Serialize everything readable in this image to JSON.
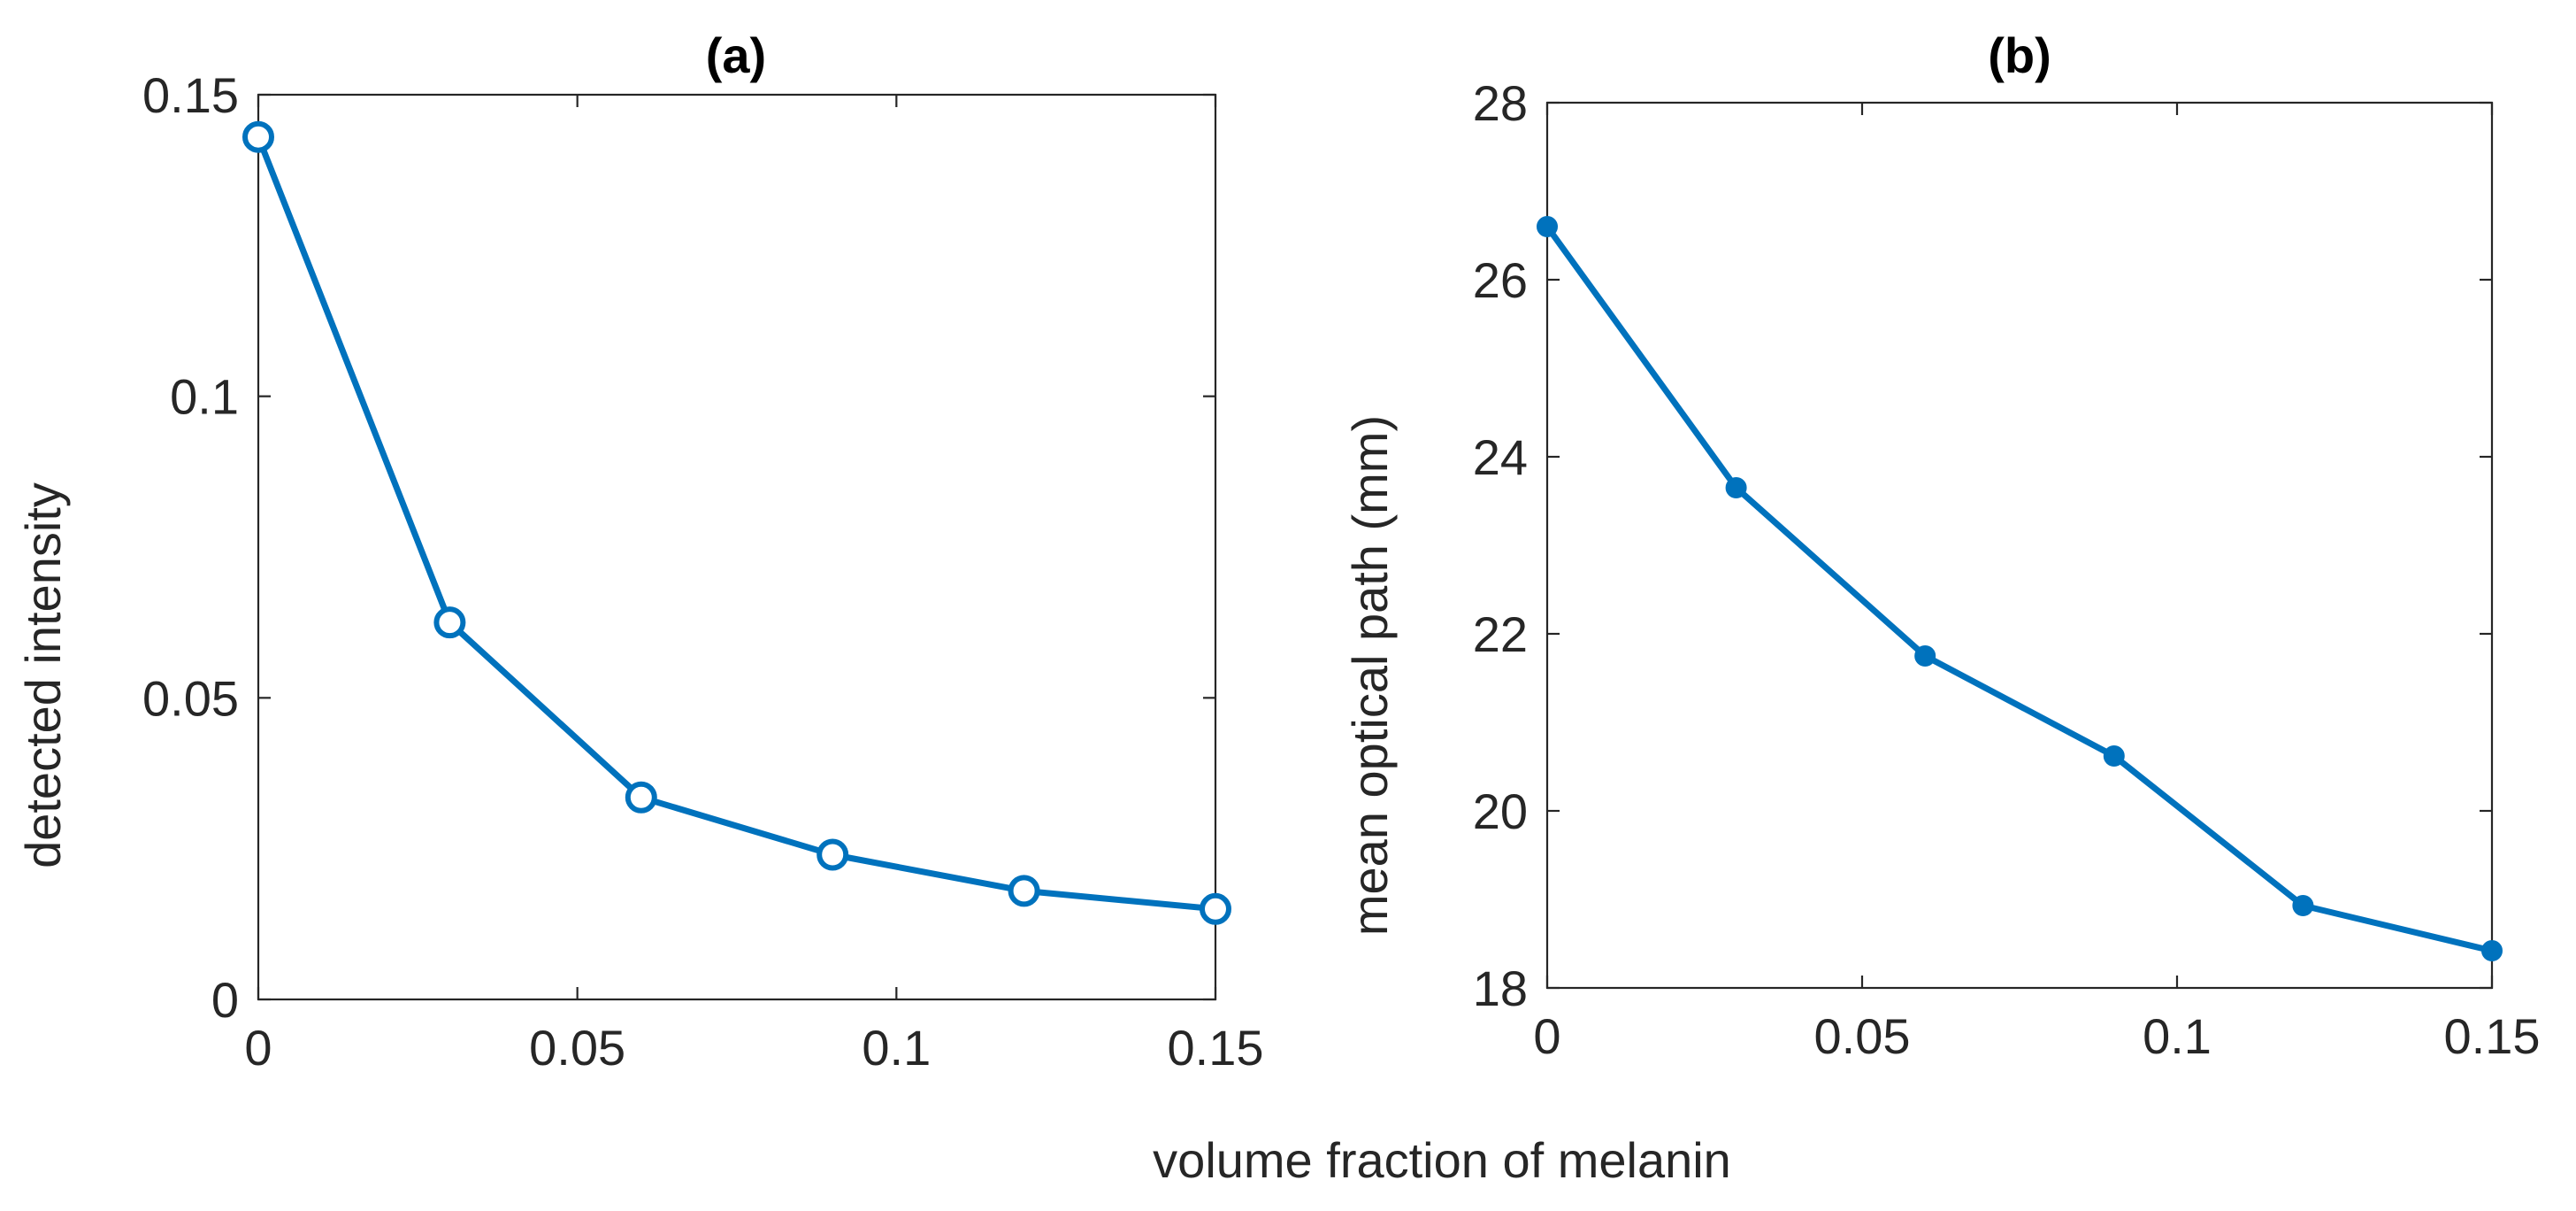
{
  "chart_data": [
    {
      "type": "line",
      "title": "(a)",
      "xlabel": "volume fraction of melanin",
      "ylabel": "detected intensity",
      "xlim": [
        0,
        0.15
      ],
      "ylim": [
        0,
        0.15
      ],
      "xticks": [
        0,
        0.05,
        0.1,
        0.15
      ],
      "xtick_labels": [
        "0",
        "0.05",
        "0.1",
        "0.15"
      ],
      "yticks": [
        0,
        0.05,
        0.1,
        0.15
      ],
      "ytick_labels": [
        "0",
        "0.05",
        "0.1",
        "0.15"
      ],
      "grid": false,
      "series": [
        {
          "name": "detected intensity",
          "color": "#0072BD",
          "marker": "open-circle",
          "x": [
            0,
            0.03,
            0.06,
            0.09,
            0.12,
            0.15
          ],
          "y": [
            0.143,
            0.0625,
            0.0335,
            0.024,
            0.018,
            0.015
          ]
        }
      ]
    },
    {
      "type": "line",
      "title": "(b)",
      "xlabel": "volume fraction of melanin",
      "ylabel": "mean optical path (mm)",
      "xlim": [
        0,
        0.15
      ],
      "ylim": [
        18,
        28
      ],
      "xticks": [
        0,
        0.05,
        0.1,
        0.15
      ],
      "xtick_labels": [
        "0",
        "0.05",
        "0.1",
        "0.15"
      ],
      "yticks": [
        18,
        20,
        22,
        24,
        26,
        28
      ],
      "ytick_labels": [
        "18",
        "20",
        "22",
        "24",
        "26",
        "28"
      ],
      "grid": false,
      "series": [
        {
          "name": "mean optical path",
          "color": "#0072BD",
          "marker": "filled-circle",
          "x": [
            0,
            0.03,
            0.06,
            0.09,
            0.12,
            0.15
          ],
          "y": [
            26.6,
            23.65,
            21.75,
            20.62,
            18.93,
            18.42
          ]
        }
      ]
    }
  ],
  "shared_xlabel": "volume fraction of melanin"
}
